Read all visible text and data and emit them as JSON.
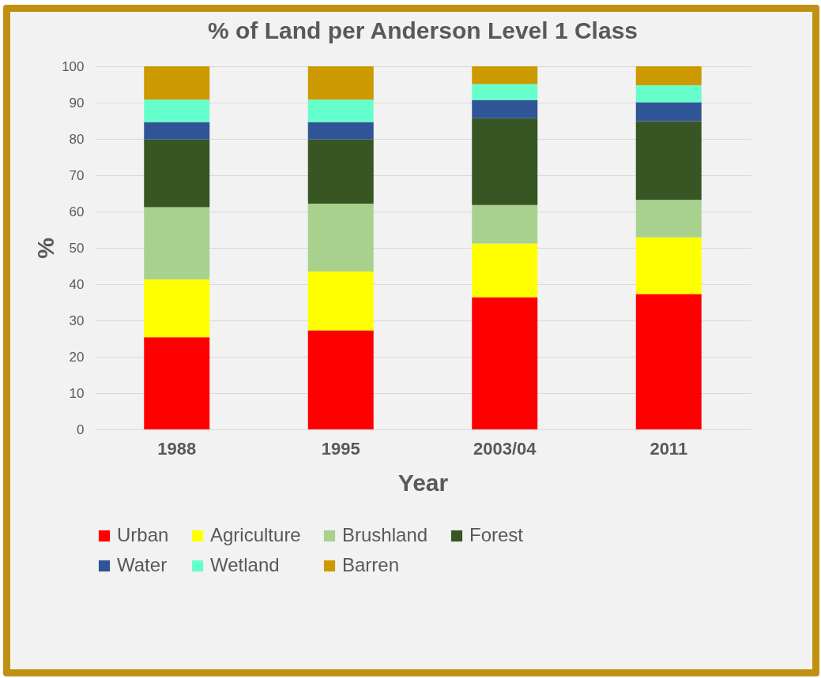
{
  "chart_data": {
    "type": "bar",
    "title": "% of Land per Anderson Level 1 Class",
    "xlabel": "Year",
    "ylabel": "%",
    "categories": [
      "1988",
      "1995",
      "2003/04",
      "2011"
    ],
    "stacked": true,
    "series": [
      {
        "name": "Urban",
        "color": "#ff0000",
        "values": [
          25.4,
          27.3,
          36.4,
          37.3
        ]
      },
      {
        "name": "Agriculture",
        "color": "#ffff00",
        "values": [
          15.9,
          16.2,
          14.8,
          15.6
        ]
      },
      {
        "name": "Brushland",
        "color": "#a9d18e",
        "values": [
          19.9,
          18.7,
          10.6,
          10.3
        ]
      },
      {
        "name": "Forest",
        "color": "#375623",
        "values": [
          18.7,
          17.7,
          23.9,
          21.7
        ]
      },
      {
        "name": "Water",
        "color": "#2f5597",
        "values": [
          4.7,
          4.7,
          5.0,
          5.2
        ]
      },
      {
        "name": "Wetland",
        "color": "#66ffcc",
        "values": [
          6.2,
          6.2,
          4.4,
          4.7
        ]
      },
      {
        "name": "Barren",
        "color": "#cc9900",
        "values": [
          9.2,
          9.2,
          4.9,
          5.2
        ]
      }
    ],
    "ylim": [
      0,
      100
    ],
    "yticks": [
      0,
      10,
      20,
      30,
      40,
      50,
      60,
      70,
      80,
      90,
      100
    ],
    "grid": "y",
    "legend": "bottom"
  }
}
